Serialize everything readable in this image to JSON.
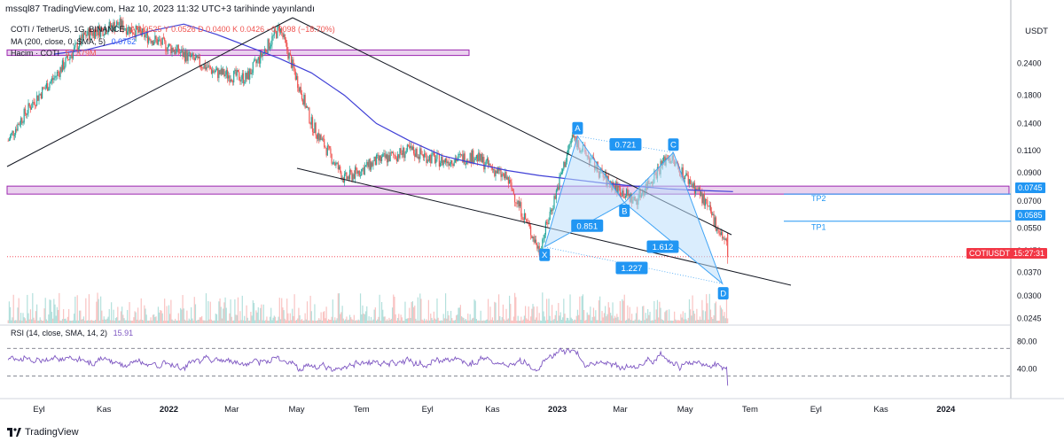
{
  "header": {
    "publisher": "mssql87 TradingView.com, Haz 10, 2023 11:32 UTC+3 tarihinde yayınlandı"
  },
  "legend": {
    "symbol_line": "COTI / TetherUS, 1G, BINANCE",
    "ohlc_values": "A 0.0525  Y 0.0526  D 0.0400  K 0.0426  −0.0098 (−18.70%)",
    "ma_label": "MA (200, close, 0, SMA, 5)",
    "ma_value": "0.0762",
    "volume_label": "Hacim · COTI",
    "volume_value": "57.379M",
    "rsi_label": "RSI (14, close, SMA, 14, 2)",
    "rsi_value": "15.91"
  },
  "price_axis": {
    "currency": "USDT",
    "ticks": [
      "0.2400",
      "0.1800",
      "0.1400",
      "0.1100",
      "0.0900",
      "0.0700",
      "0.0550",
      "0.0450",
      "0.0370",
      "0.0300",
      "0.0245"
    ],
    "rsi_ticks": [
      "80.00",
      "40.00"
    ]
  },
  "time_axis": {
    "ticks": [
      "Eyl",
      "Kas",
      "2022",
      "Mar",
      "May",
      "Tem",
      "Eyl",
      "Kas",
      "2023",
      "Mar",
      "May",
      "Tem",
      "Eyl",
      "Kas",
      "2024"
    ]
  },
  "price_tags": {
    "tp2_value": "0.0745",
    "tp1_value": "0.0585",
    "symbol_tag": "COTIUSDT",
    "current_price": "0.0426",
    "countdown": "15:27:31"
  },
  "pattern": {
    "points": [
      "X",
      "A",
      "B",
      "C",
      "D"
    ],
    "ratios": [
      "0.721",
      "0.851",
      "1.612",
      "1.227"
    ],
    "targets": [
      "TP2",
      "TP1"
    ]
  },
  "colors": {
    "up": "#26a69a",
    "down": "#ef5350",
    "ma": "#3f3fd6",
    "zone": "#e1bee7",
    "zone_border": "#9c27b0",
    "pattern_fill": "#bbdefb",
    "pattern_line": "#42a5f5",
    "rsi": "#7e57c2",
    "tag_blue": "#2196f3",
    "tag_red": "#f23645"
  },
  "chart_data": {
    "type": "candlestick",
    "symbol": "COTI / TetherUS",
    "interval": "1G",
    "exchange": "BINANCE",
    "y_scale": "log",
    "ylim": [
      0.0235,
      0.36
    ],
    "x": [
      "2021-09",
      "2021-10",
      "2021-11",
      "2021-12",
      "2022-01",
      "2022-02",
      "2022-03",
      "2022-04",
      "2022-05",
      "2022-06",
      "2022-07",
      "2022-08",
      "2022-09",
      "2022-10",
      "2022-11",
      "2022-12",
      "2023-01",
      "2023-02",
      "2023-03",
      "2023-04",
      "2023-05",
      "2023-06"
    ],
    "close_approx": [
      0.21,
      0.31,
      0.34,
      0.3,
      0.26,
      0.22,
      0.21,
      0.33,
      0.14,
      0.085,
      0.1,
      0.11,
      0.1,
      0.105,
      0.085,
      0.045,
      0.125,
      0.085,
      0.07,
      0.105,
      0.075,
      0.0426
    ],
    "ma200_approx": [
      0.26,
      0.27,
      0.29,
      0.32,
      0.34,
      0.31,
      0.28,
      0.25,
      0.22,
      0.18,
      0.14,
      0.12,
      0.105,
      0.098,
      0.092,
      0.088,
      0.085,
      0.082,
      0.08,
      0.078,
      0.077,
      0.0762
    ],
    "last": {
      "open": 0.0525,
      "high": 0.0526,
      "low": 0.04,
      "close": 0.0426,
      "change": -0.0098,
      "change_pct": -18.7
    },
    "ma200_last": 0.0762,
    "volume_last": "57.379M",
    "rsi_last": 15.91,
    "rsi_levels": [
      70,
      30
    ],
    "zones": [
      {
        "type": "supply",
        "from": 0.257,
        "to": 0.27
      },
      {
        "type": "demand",
        "from": 0.0745,
        "to": 0.08
      }
    ],
    "harmonic_pattern": {
      "X": {
        "date": "2022-12",
        "price": 0.0465
      },
      "A": {
        "date": "2023-01",
        "price": 0.125
      },
      "B": {
        "date": "2023-03",
        "price": 0.069
      },
      "C": {
        "date": "2023-04",
        "price": 0.108
      },
      "D": {
        "date": "2023-06",
        "price": 0.0335
      }
    },
    "targets": [
      {
        "name": "TP2",
        "price": 0.0745
      },
      {
        "name": "TP1",
        "price": 0.0585
      }
    ]
  }
}
